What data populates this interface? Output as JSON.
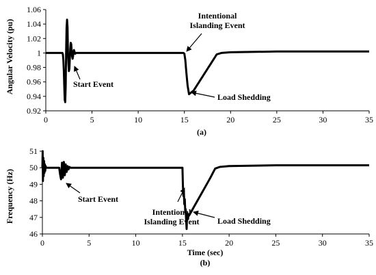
{
  "chart_data": [
    {
      "type": "line",
      "panel_label": "(a)",
      "title": "",
      "xlabel": "",
      "ylabel": "Angular Velocity (pu)",
      "xlim": [
        0,
        35
      ],
      "ylim": [
        0.92,
        1.06
      ],
      "x_ticks": [
        "0",
        "5",
        "10",
        "15",
        "20",
        "25",
        "30",
        "35"
      ],
      "y_ticks": [
        "0.92",
        "0.94",
        "0.96",
        "0.98",
        "1",
        "1.02",
        "1.04",
        "1.06"
      ],
      "grid": false,
      "series": [
        {
          "x": [
            0,
            1.8,
            1.85,
            1.9,
            1.95,
            2.0,
            2.05,
            2.1,
            2.15,
            2.2,
            2.25,
            2.3,
            2.35,
            2.4,
            2.45,
            2.5,
            2.55,
            2.6,
            2.65,
            2.7,
            2.75,
            2.8,
            2.85,
            2.9,
            2.95,
            3.0,
            3.05,
            3.1,
            3.15,
            3.2,
            3.25,
            3.3,
            3.5,
            4,
            6,
            8,
            10,
            12,
            14,
            14.9,
            15.0,
            15.1,
            15.2,
            15.35,
            15.5,
            16,
            16.5,
            17,
            17.5,
            18,
            18.5,
            19,
            20,
            25,
            30,
            35
          ],
          "y": [
            1.0,
            1.0,
            0.998,
            0.99,
            0.975,
            0.955,
            0.935,
            0.932,
            0.955,
            1.0,
            1.035,
            1.046,
            1.035,
            1.0,
            0.985,
            0.975,
            0.978,
            0.992,
            1.006,
            1.014,
            1.012,
            1.003,
            0.995,
            0.992,
            0.996,
            1.002,
            1.004,
            1.002,
            0.999,
            0.999,
            1.0,
            1.0,
            1.0,
            1.0,
            1.0,
            1.0,
            1.0,
            1.0,
            1.0,
            1.0,
            0.999,
            0.99,
            0.975,
            0.955,
            0.943,
            0.948,
            0.958,
            0.968,
            0.978,
            0.988,
            0.998,
            1.0,
            1.001,
            1.002,
            1.002,
            1.002
          ]
        }
      ],
      "annotations": [
        {
          "lines": [
            "Start Event"
          ],
          "at": [
            2.5,
            0.975
          ]
        },
        {
          "lines": [
            "Intentional",
            "Islanding Event"
          ],
          "at": [
            15.0,
            1.0
          ]
        },
        {
          "lines": [
            "Load Shedding"
          ],
          "at": [
            15.6,
            0.943
          ]
        }
      ]
    },
    {
      "type": "line",
      "panel_label": "(b)",
      "title": "",
      "xlabel": "Time (sec)",
      "ylabel": "Frequency (Hz)",
      "xlim": [
        0,
        35
      ],
      "ylim": [
        46,
        51
      ],
      "x_ticks": [
        "0",
        "5",
        "10",
        "15",
        "20",
        "25",
        "30",
        "35"
      ],
      "y_ticks": [
        "46",
        "47",
        "48",
        "49",
        "50",
        "51"
      ],
      "grid": false,
      "series": [
        {
          "x": [
            0.0,
            0.03,
            0.06,
            0.1,
            0.14,
            0.18,
            0.22,
            0.26,
            0.3,
            0.35,
            0.4,
            0.5,
            0.7,
            1.0,
            1.5,
            1.8,
            1.9,
            2.0,
            2.1,
            2.2,
            2.3,
            2.4,
            2.5,
            2.6,
            2.7,
            2.8,
            2.9,
            3.0,
            3.2,
            3.5,
            4,
            6,
            8,
            10,
            12,
            14,
            15.0,
            15.05,
            15.1,
            15.15,
            15.2,
            15.25,
            15.3,
            15.35,
            15.4,
            15.45,
            15.5,
            15.55,
            15.6,
            15.65,
            15.7,
            15.8,
            16.0,
            16.5,
            17.0,
            17.5,
            18.0,
            18.5,
            19,
            20,
            25,
            30,
            35
          ],
          "y": [
            50.0,
            51.0,
            49.2,
            50.6,
            49.5,
            50.4,
            49.7,
            50.2,
            49.8,
            50.1,
            50.0,
            50.0,
            50.0,
            50.0,
            50.0,
            50.0,
            49.6,
            49.3,
            50.3,
            49.4,
            50.35,
            49.55,
            50.2,
            49.75,
            50.1,
            49.9,
            50.05,
            50.0,
            50.0,
            50.0,
            50.0,
            50.0,
            50.0,
            50.0,
            50.0,
            50.0,
            50.0,
            49.0,
            48.3,
            48.6,
            47.8,
            48.1,
            47.3,
            47.5,
            46.8,
            46.3,
            47.2,
            47.0,
            46.9,
            47.2,
            47.1,
            47.2,
            47.4,
            47.9,
            48.4,
            48.9,
            49.4,
            49.95,
            50.05,
            50.1,
            50.15,
            50.15,
            50.15
          ]
        }
      ],
      "annotations": [
        {
          "lines": [
            "Start Event"
          ],
          "at": [
            2.6,
            49.6
          ]
        },
        {
          "lines": [
            "Intentional",
            "Islanding Event"
          ],
          "at": [
            15.15,
            48.4
          ]
        },
        {
          "lines": [
            "Load Shedding"
          ],
          "at": [
            15.7,
            47.0
          ]
        }
      ]
    }
  ]
}
